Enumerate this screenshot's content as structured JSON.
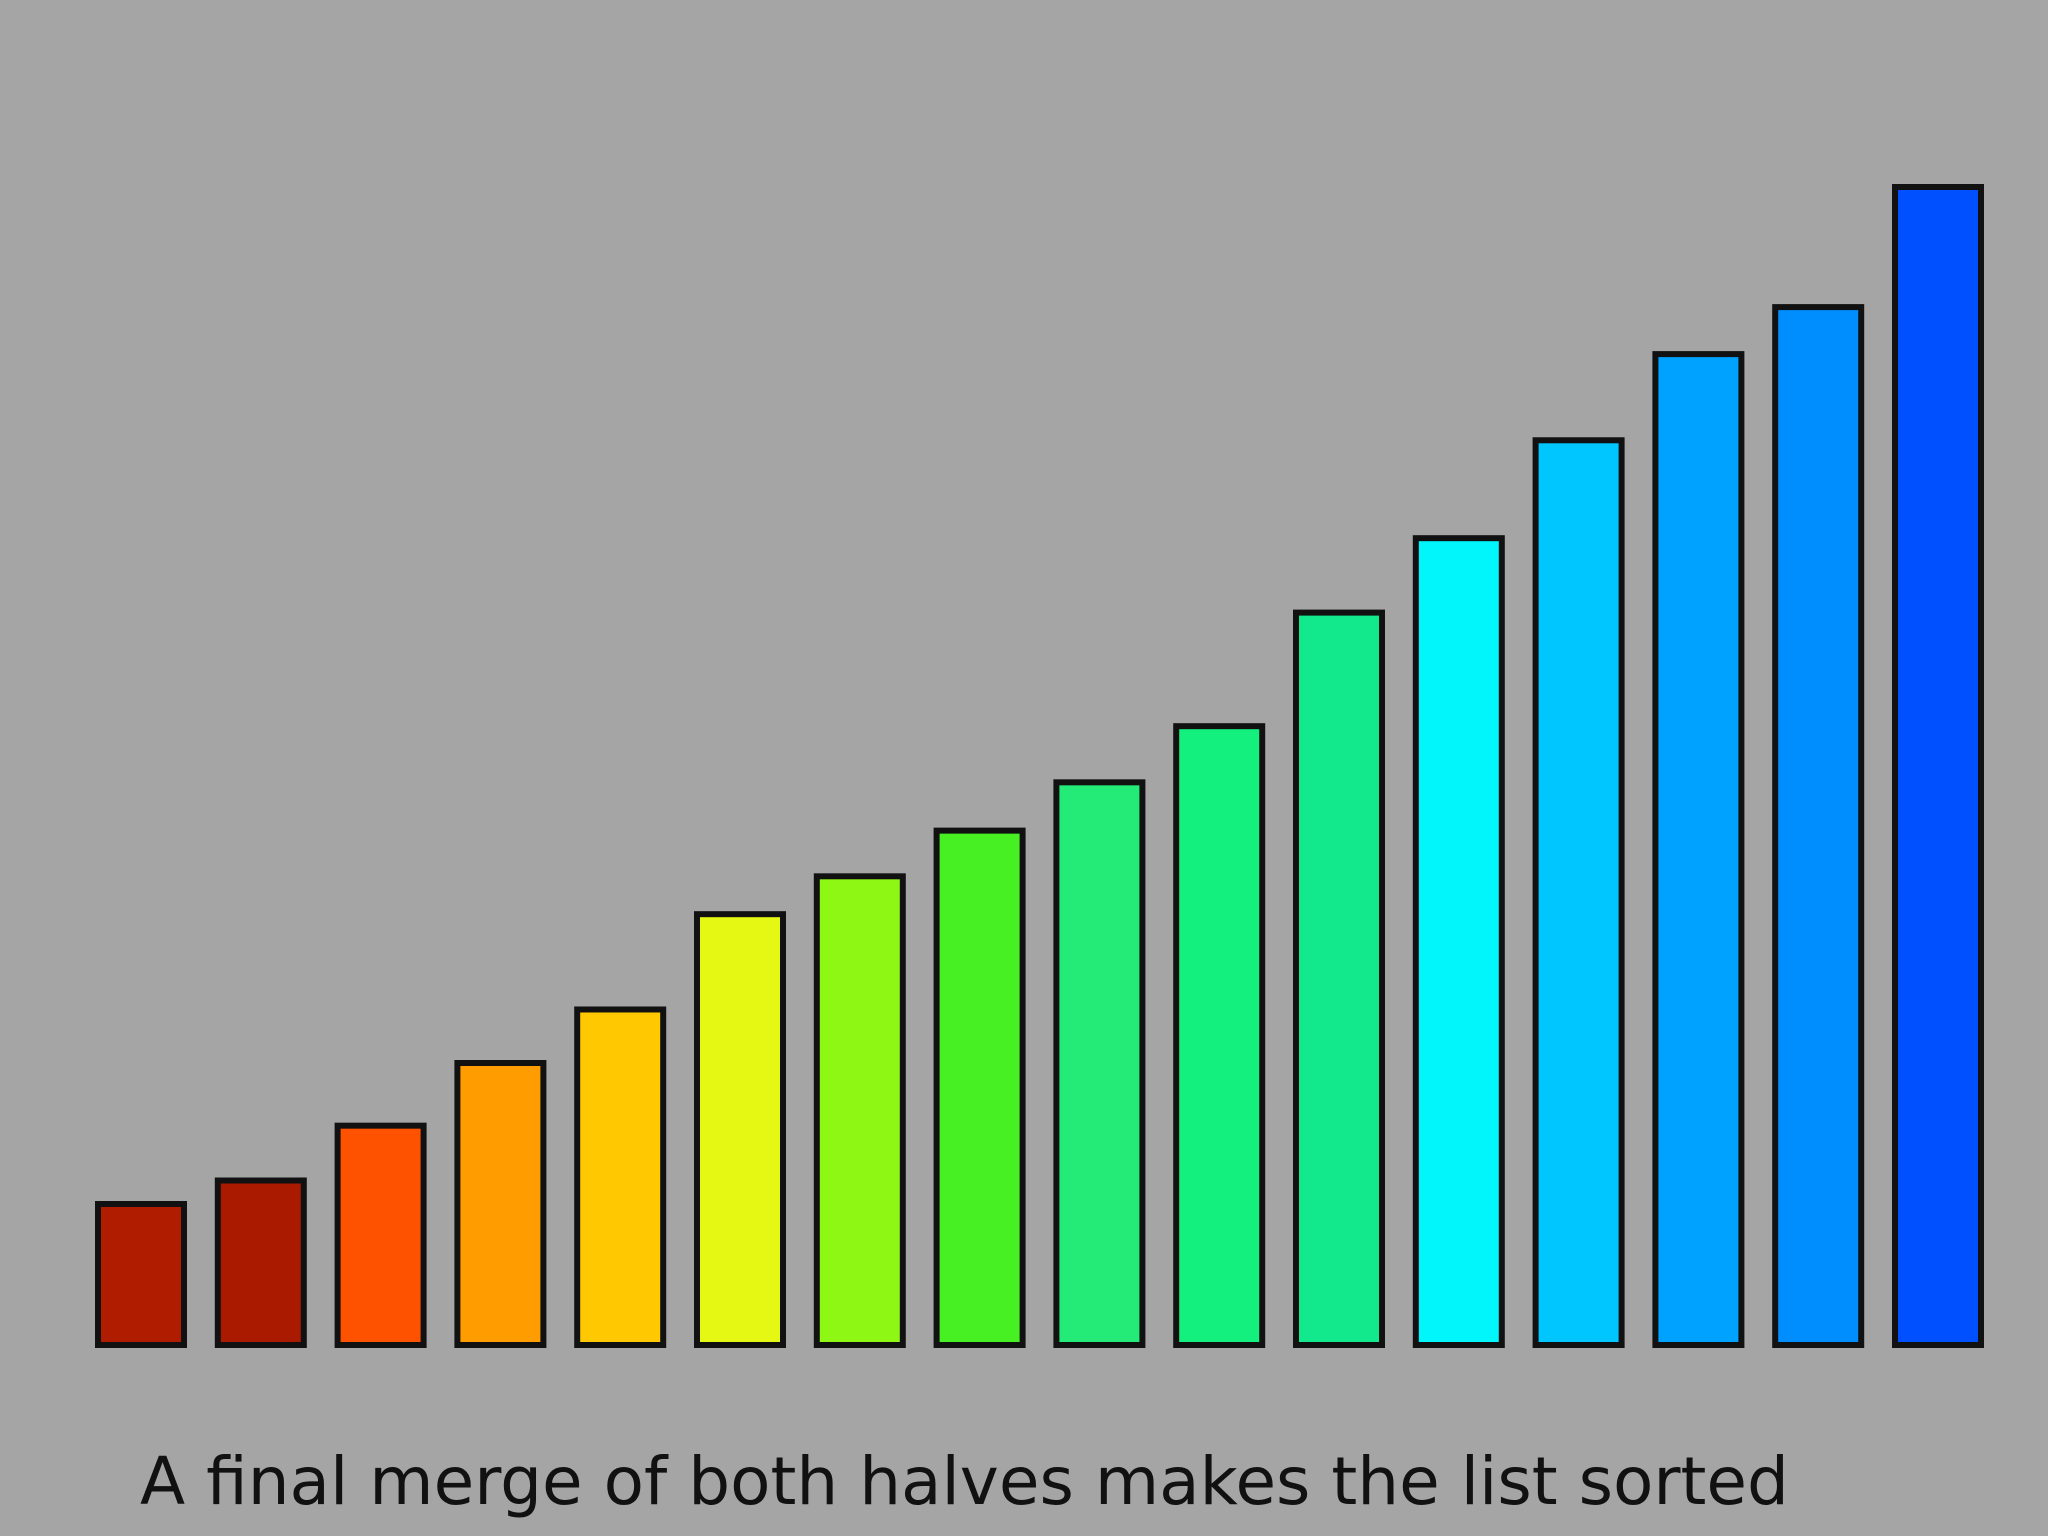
{
  "chart_data": {
    "type": "bar",
    "title": "A final merge of both halves makes the list sorted",
    "categories": [
      null,
      null,
      null,
      null,
      null,
      null,
      null,
      null,
      null,
      null,
      null,
      null,
      null,
      null,
      null,
      null
    ],
    "values": [
      108,
      126,
      168,
      216,
      257,
      330,
      359,
      394,
      431,
      474,
      561,
      618,
      693,
      759,
      795,
      887
    ],
    "colors": [
      "#b01c00",
      "#aa1a00",
      "#ff5200",
      "#ff9c00",
      "#ffc800",
      "#e4f814",
      "#8ef814",
      "#46f022",
      "#24ea78",
      "#14f07e",
      "#12e88c",
      "#00f6fa",
      "#00c6ff",
      "#00a2ff",
      "#008eff",
      "#0050ff"
    ]
  }
}
